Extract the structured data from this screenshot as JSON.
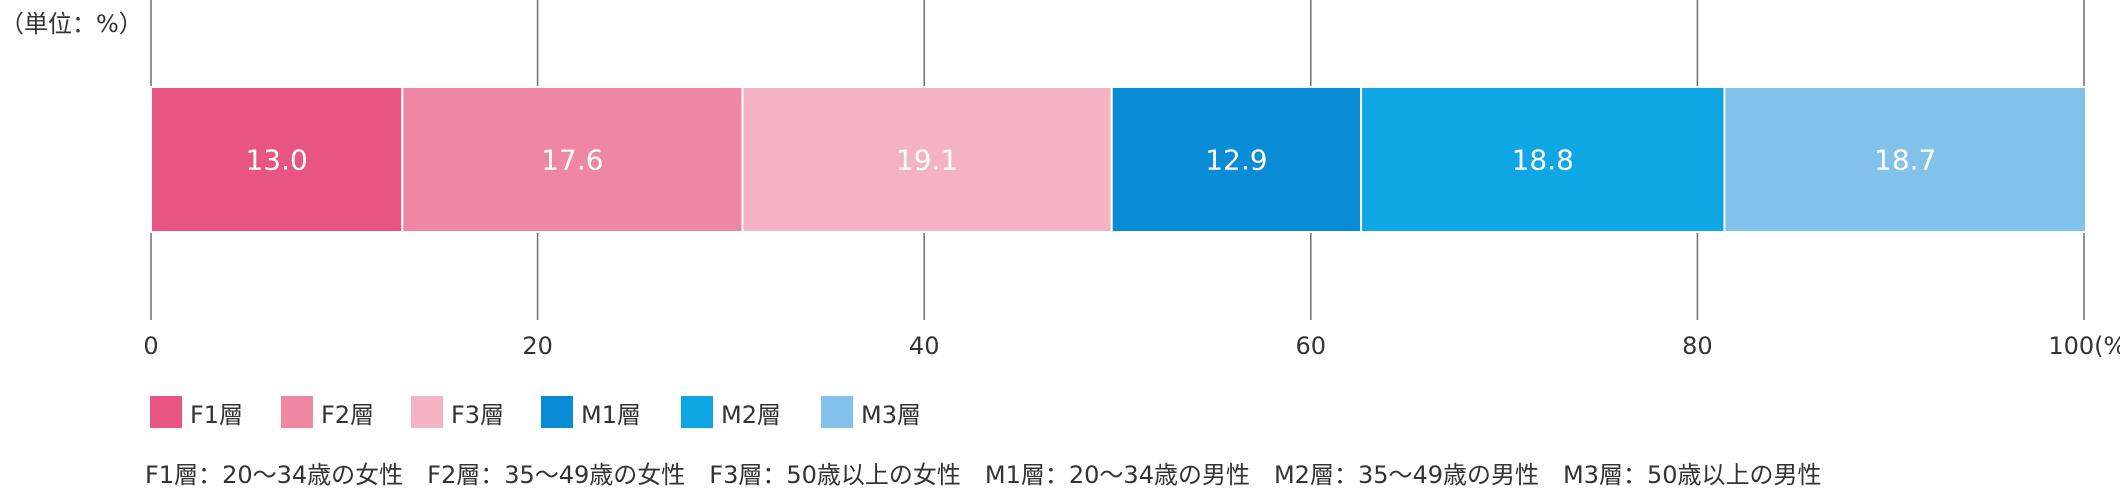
{
  "unit_note": "（単位：%）",
  "chart_data": {
    "type": "bar",
    "orientation": "horizontal",
    "stacked": true,
    "xlim": [
      0,
      100
    ],
    "x_ticks": [
      {
        "value": 0,
        "label": "0"
      },
      {
        "value": 20,
        "label": "20"
      },
      {
        "value": 40,
        "label": "40"
      },
      {
        "value": 60,
        "label": "60"
      },
      {
        "value": 80,
        "label": "80"
      },
      {
        "value": 100,
        "label": "100(%)"
      }
    ],
    "grid": true,
    "series": [
      {
        "name": "F1層",
        "value": 13.0,
        "label": "13.0",
        "color": "#e95583"
      },
      {
        "name": "F2層",
        "value": 17.6,
        "label": "17.6",
        "color": "#ef87a2"
      },
      {
        "name": "F3層",
        "value": 19.1,
        "label": "19.1",
        "color": "#f4b3c3"
      },
      {
        "name": "M1層",
        "value": 12.9,
        "label": "12.9",
        "color": "#0a8bd6"
      },
      {
        "name": "M2層",
        "value": 18.8,
        "label": "18.8",
        "color": "#0ea6e3"
      },
      {
        "name": "M3層",
        "value": 18.7,
        "label": "18.7",
        "color": "#82c1ea"
      }
    ],
    "legend_position": "bottom-left"
  },
  "footnote": "F1層：20～34歳の女性　F2層：35～49歳の女性　F3層：50歳以上の女性　M1層：20～34歳の男性　M2層：35～49歳の男性　M3層：50歳以上の男性"
}
